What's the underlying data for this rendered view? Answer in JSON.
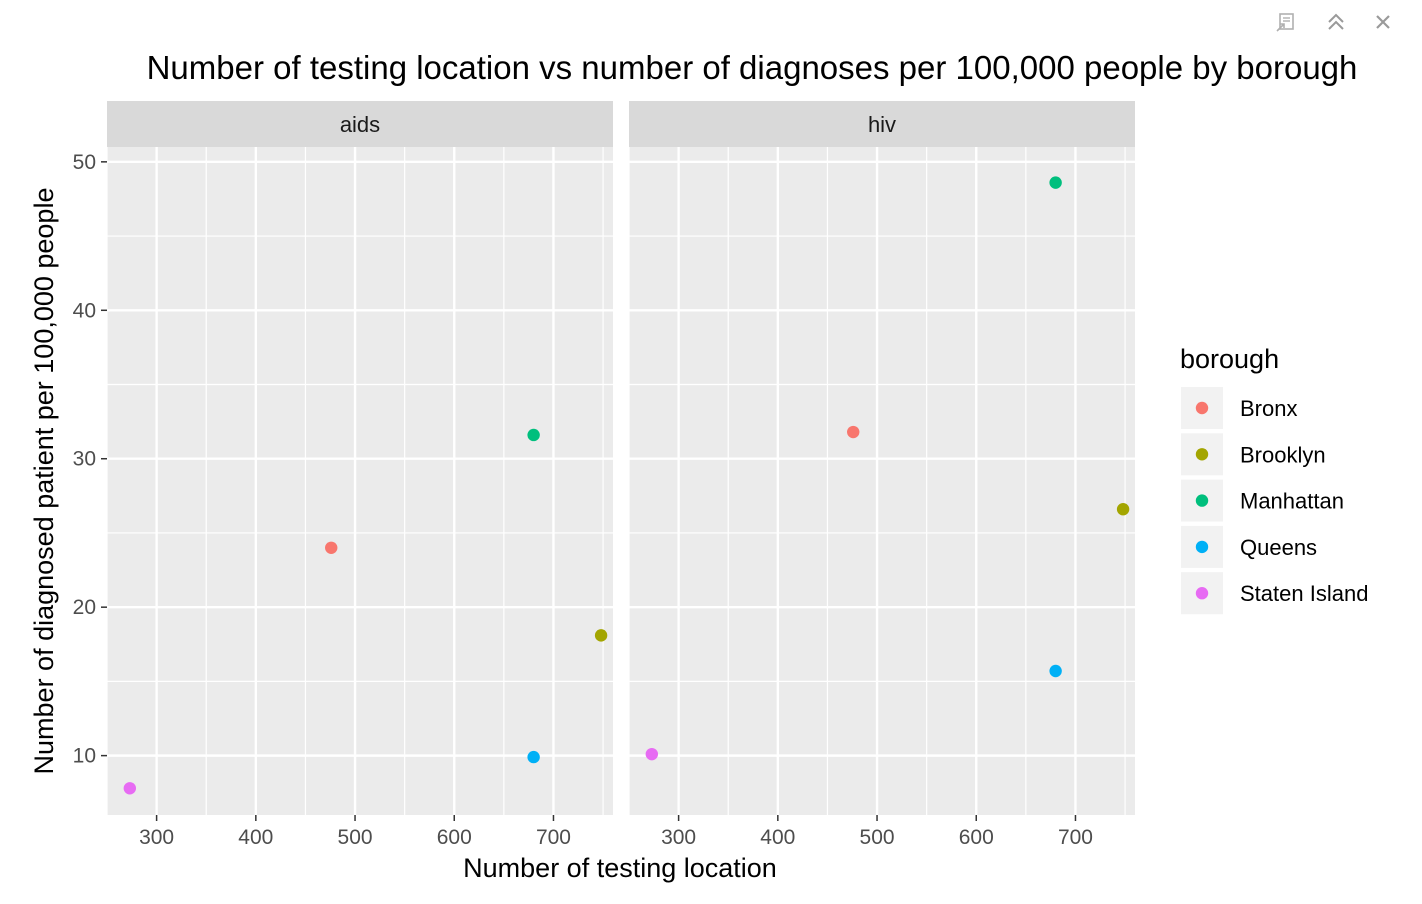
{
  "window_controls": {
    "popout_icon": "popout-icon",
    "collapse_icon": "chevron-double-up-icon",
    "close_icon": "close-icon",
    "icon_color": "#9a9a9a"
  },
  "chart_data": {
    "type": "scatter",
    "title": "Number of testing location vs number of diagnoses per 100,000 people by borough",
    "xlabel": "Number of testing location",
    "ylabel": "Number of diagnosed patient per 100,000 people",
    "xlim": [
      250,
      760
    ],
    "ylim": [
      6,
      51
    ],
    "x_ticks": [
      300,
      400,
      500,
      600,
      700
    ],
    "y_ticks": [
      10,
      20,
      30,
      40,
      50
    ],
    "grid": true,
    "panel_background": "#ebebeb",
    "strip_background": "#d9d9d9",
    "facets": [
      {
        "label": "aids",
        "points": [
          {
            "borough": "Bronx",
            "x": 476,
            "y": 24.0
          },
          {
            "borough": "Brooklyn",
            "x": 748,
            "y": 18.1
          },
          {
            "borough": "Manhattan",
            "x": 680,
            "y": 31.6
          },
          {
            "borough": "Queens",
            "x": 680,
            "y": 9.9
          },
          {
            "borough": "Staten Island",
            "x": 273,
            "y": 7.8
          }
        ]
      },
      {
        "label": "hiv",
        "points": [
          {
            "borough": "Bronx",
            "x": 476,
            "y": 31.8
          },
          {
            "borough": "Brooklyn",
            "x": 748,
            "y": 26.6
          },
          {
            "borough": "Manhattan",
            "x": 680,
            "y": 48.6
          },
          {
            "borough": "Queens",
            "x": 680,
            "y": 15.7
          },
          {
            "borough": "Staten Island",
            "x": 273,
            "y": 10.1
          }
        ]
      }
    ],
    "legend": {
      "title": "borough",
      "placement": "right",
      "items": [
        {
          "label": "Bronx",
          "color": "#F8766D"
        },
        {
          "label": "Brooklyn",
          "color": "#A3A500"
        },
        {
          "label": "Manhattan",
          "color": "#00BF7D"
        },
        {
          "label": "Queens",
          "color": "#00B0F6"
        },
        {
          "label": "Staten Island",
          "color": "#E76BF3"
        }
      ]
    }
  }
}
